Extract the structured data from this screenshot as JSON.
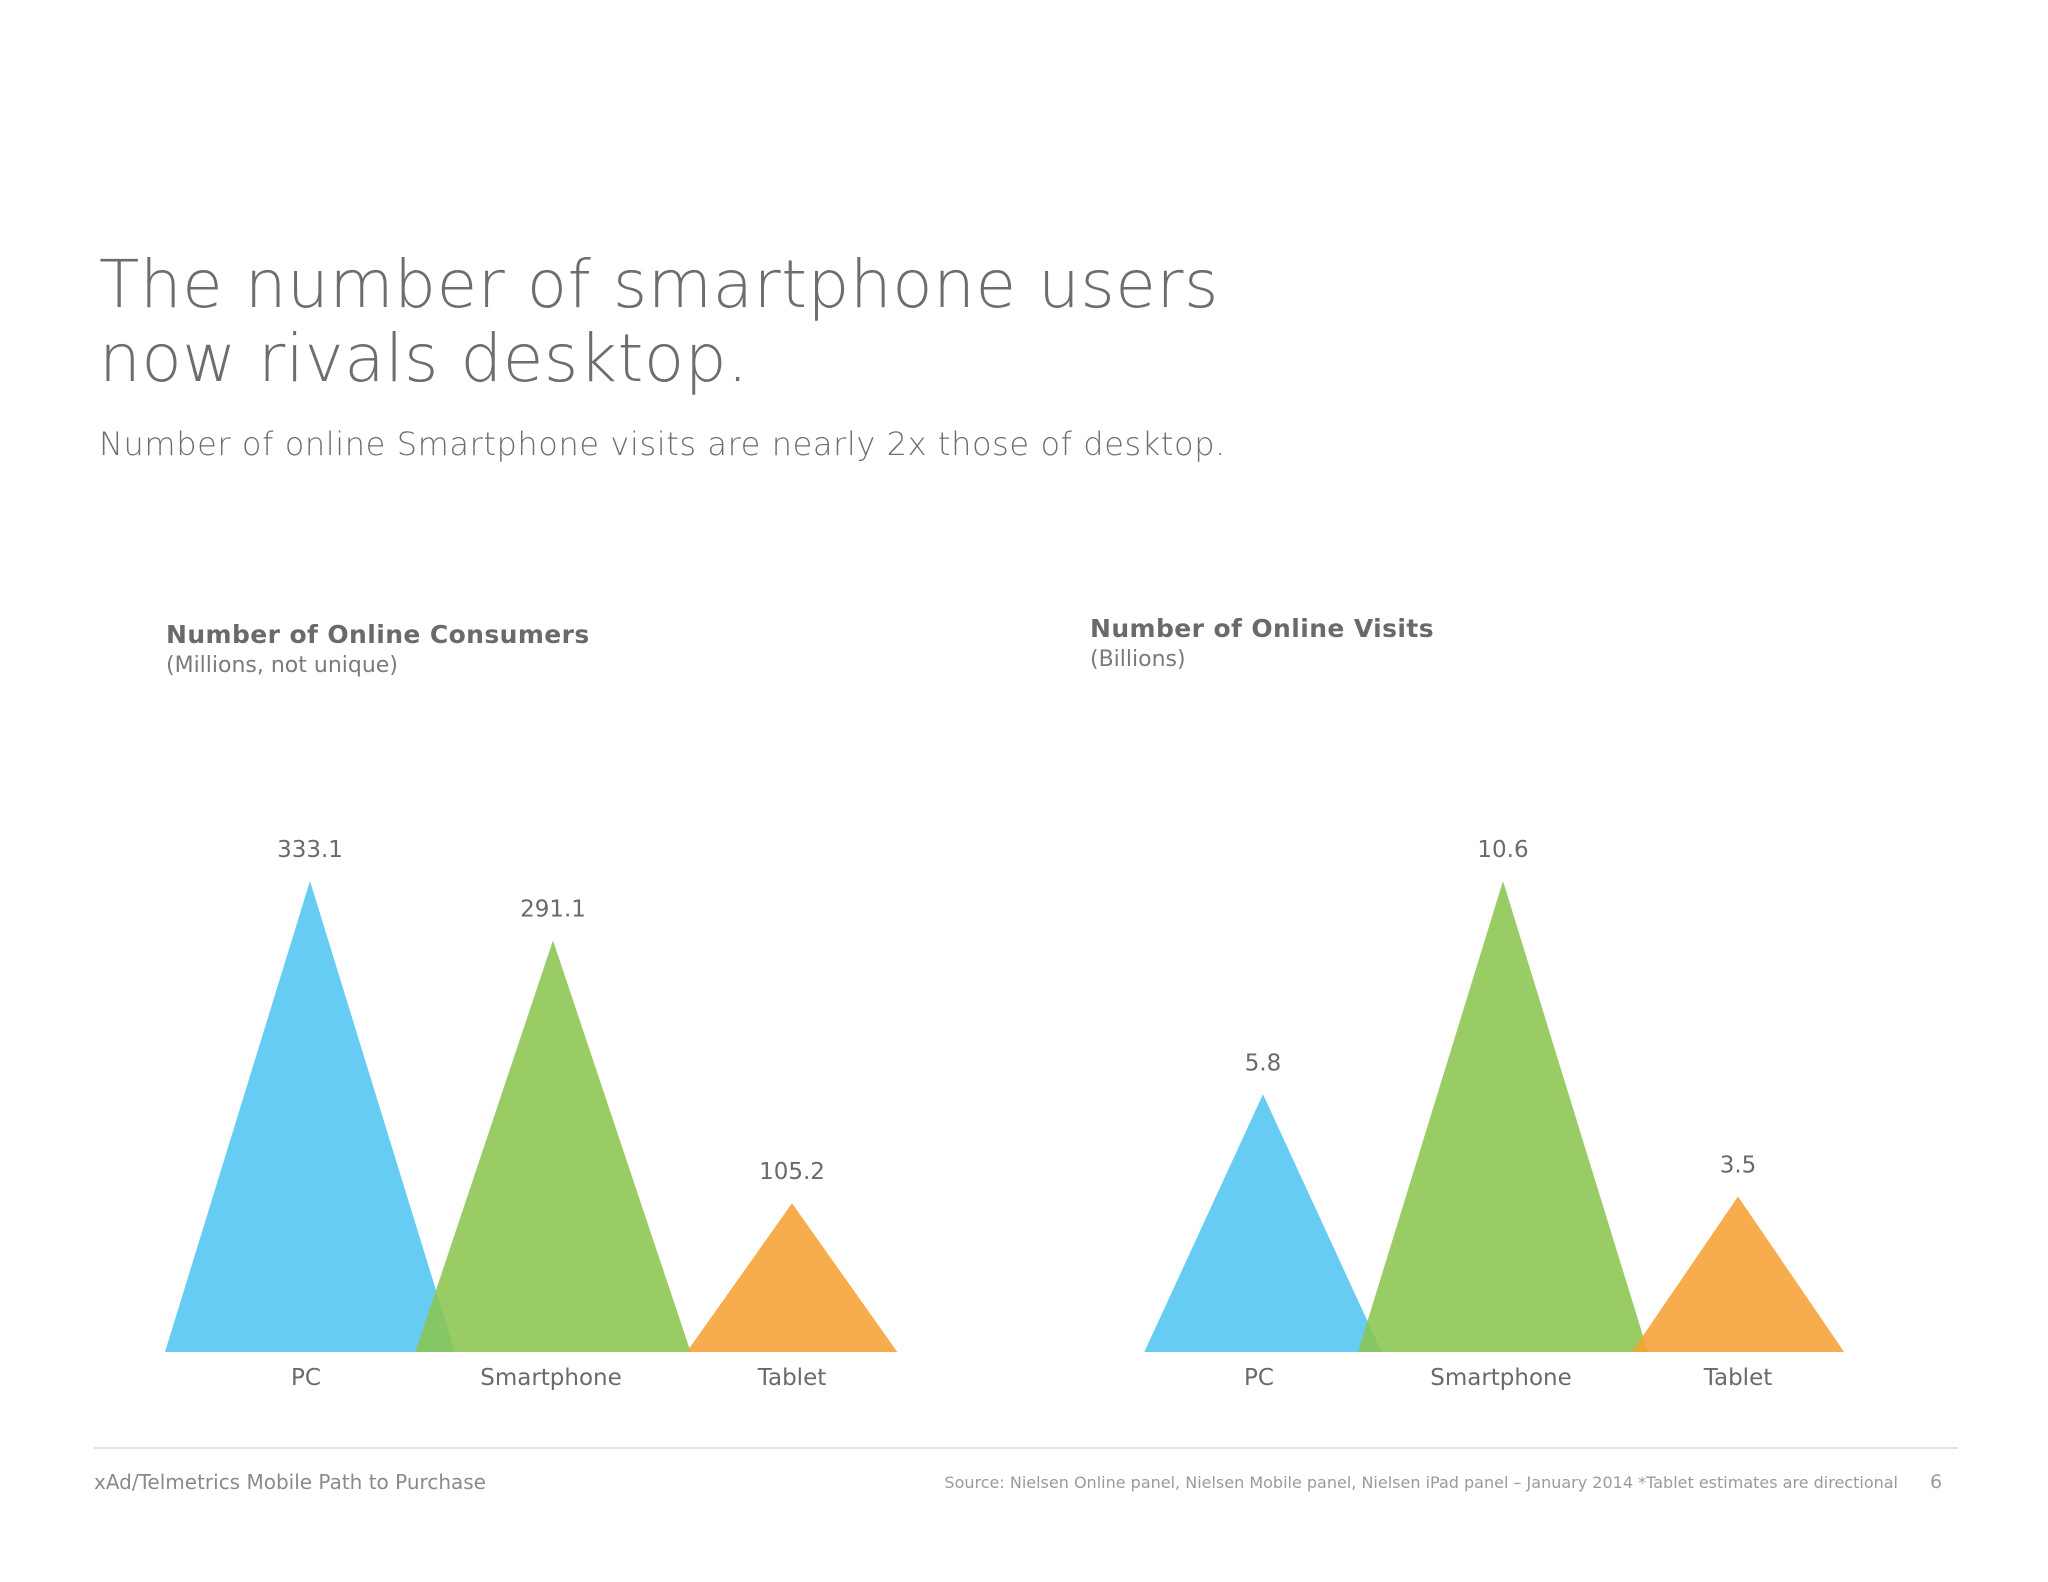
{
  "headline": {
    "line1": "The number of smartphone users",
    "line2": "now rivals desktop."
  },
  "subhead": "Number of online Smartphone visits are nearly 2x those of desktop.",
  "chart_data": [
    {
      "type": "bar",
      "shape": "triangle",
      "title": "Number of Online Consumers",
      "unit_label": "(Millions, not unique)",
      "categories": [
        "PC",
        "Smartphone",
        "Tablet"
      ],
      "values": [
        333.1,
        291.1,
        105.2
      ],
      "value_labels": [
        "333.1",
        "291.1",
        "105.2"
      ],
      "colors": [
        "#52c5f2",
        "#8cc551",
        "#f6a234"
      ],
      "ylim": [
        0,
        333.1
      ],
      "grid": false,
      "legend": "none"
    },
    {
      "type": "bar",
      "shape": "triangle",
      "title": "Number of Online Visits",
      "unit_label": "(Billions)",
      "categories": [
        "PC",
        "Smartphone",
        "Tablet"
      ],
      "values": [
        5.8,
        10.6,
        3.5
      ],
      "value_labels": [
        "5.8",
        "10.6",
        "3.5"
      ],
      "colors": [
        "#52c5f2",
        "#8cc551",
        "#f6a234"
      ],
      "ylim": [
        0,
        10.6
      ],
      "grid": false,
      "legend": "none"
    }
  ],
  "footer": {
    "left": "xAd/Telmetrics Mobile Path to Purchase",
    "source": "Source: Nielsen Online panel, Nielsen Mobile panel, Nielsen iPad panel – January 2014  *Tablet estimates are directional",
    "page": "6"
  }
}
